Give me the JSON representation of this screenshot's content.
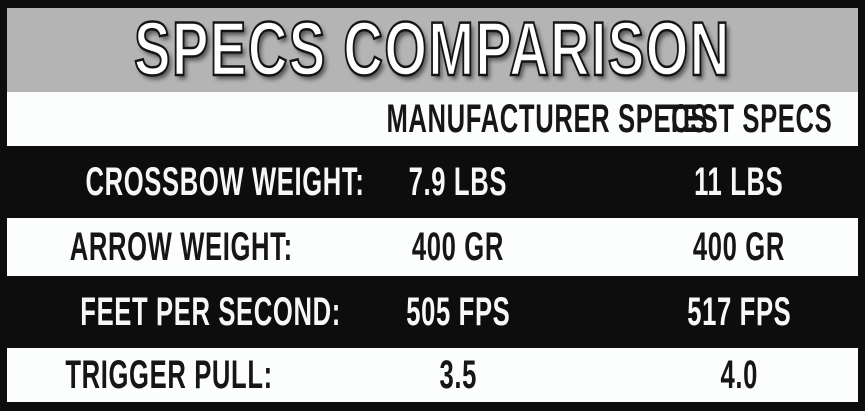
{
  "title": "SPECS COMPARISON",
  "chart_data": {
    "type": "table",
    "title": "SPECS COMPARISON",
    "columns": [
      "",
      "MANUFACTURER SPECS",
      "TEST SPECS"
    ],
    "rows": [
      [
        "CROSSBOW WEIGHT:",
        "7.9 LBS",
        "11 LBS"
      ],
      [
        "ARROW WEIGHT:",
        "400 GR",
        "400 GR"
      ],
      [
        "FEET PER SECOND:",
        "505 FPS",
        "517 FPS"
      ],
      [
        "TRIGGER PULL:",
        "3.5",
        "4.0"
      ]
    ],
    "layout_hints": {
      "row_style_alternation": [
        "dark",
        "light"
      ],
      "title_band": "gray",
      "header_row": "white"
    }
  },
  "colors": {
    "frame_black": "#0d0d0d",
    "title_band_gray": "#b4b4b4",
    "title_text_white": "#ffffff",
    "title_outline_black": "#141414",
    "row_white": "#fcfdfd",
    "text_dark": "#161616",
    "text_light": "#f7f7f7"
  }
}
